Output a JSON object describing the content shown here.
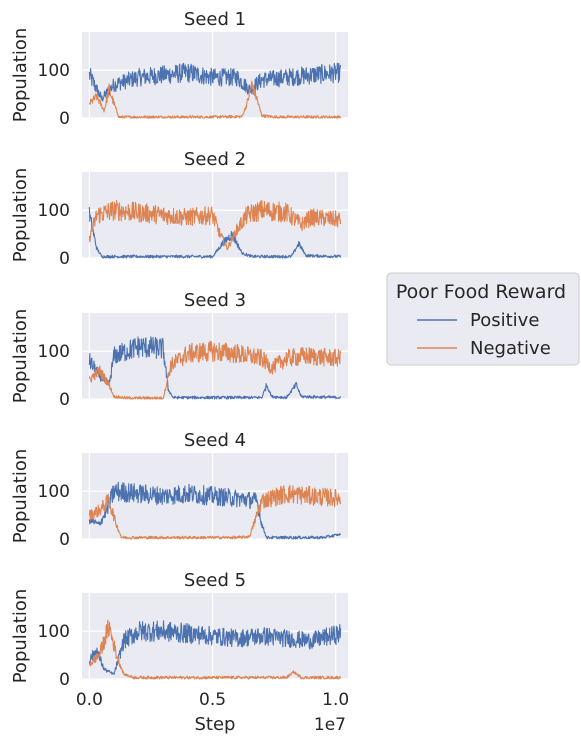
{
  "chart_data": {
    "type": "line",
    "layout": "5 stacked subplots sharing x axis",
    "xlabel": "Step",
    "x_offset_text": "1e7",
    "x_ticks": [
      0.0,
      0.5,
      1.0
    ],
    "x_tick_labels": [
      "0.0",
      "0.5",
      "1.0"
    ],
    "xlim": [
      -0.03,
      1.05
    ],
    "ylabel": "Population",
    "y_ticks": [
      0,
      100
    ],
    "y_tick_labels": [
      "0",
      "100"
    ],
    "ylim": [
      0,
      180
    ],
    "grid": true,
    "background": "#eaeaf2",
    "legend": {
      "title": "Poor Food Reward",
      "placement": "center-right outside",
      "entries": [
        {
          "name": "Positive",
          "color": "#4c72b0"
        },
        {
          "name": "Negative",
          "color": "#dd8452"
        }
      ]
    },
    "x_domain": [
      0.0,
      1.02
    ],
    "panels": [
      {
        "title": "Seed 1",
        "series": [
          {
            "name": "Positive",
            "color": "#4c72b0",
            "segments": [
              [
                0.0,
                90
              ],
              [
                0.05,
                40
              ],
              [
                0.1,
                70
              ],
              [
                0.2,
                85
              ],
              [
                0.3,
                90
              ],
              [
                0.4,
                95
              ],
              [
                0.5,
                85
              ],
              [
                0.6,
                85
              ],
              [
                0.65,
                60
              ],
              [
                0.7,
                80
              ],
              [
                0.8,
                85
              ],
              [
                0.9,
                90
              ],
              [
                1.02,
                95
              ]
            ]
          },
          {
            "name": "Negative",
            "color": "#dd8452",
            "segments": [
              [
                0.0,
                30
              ],
              [
                0.03,
                45
              ],
              [
                0.06,
                15
              ],
              [
                0.08,
                60
              ],
              [
                0.1,
                30
              ],
              [
                0.12,
                2
              ],
              [
                0.2,
                2
              ],
              [
                0.5,
                2
              ],
              [
                0.62,
                3
              ],
              [
                0.64,
                30
              ],
              [
                0.66,
                70
              ],
              [
                0.68,
                40
              ],
              [
                0.7,
                5
              ],
              [
                0.75,
                2
              ],
              [
                1.02,
                2
              ]
            ]
          }
        ]
      },
      {
        "title": "Seed 2",
        "series": [
          {
            "name": "Positive",
            "color": "#4c72b0",
            "segments": [
              [
                0.0,
                90
              ],
              [
                0.03,
                20
              ],
              [
                0.05,
                3
              ],
              [
                0.5,
                3
              ],
              [
                0.54,
                30
              ],
              [
                0.58,
                50
              ],
              [
                0.62,
                10
              ],
              [
                0.66,
                3
              ],
              [
                0.82,
                3
              ],
              [
                0.85,
                30
              ],
              [
                0.88,
                5
              ],
              [
                1.02,
                3
              ]
            ]
          },
          {
            "name": "Negative",
            "color": "#dd8452",
            "segments": [
              [
                0.0,
                40
              ],
              [
                0.03,
                90
              ],
              [
                0.1,
                100
              ],
              [
                0.2,
                95
              ],
              [
                0.3,
                90
              ],
              [
                0.4,
                85
              ],
              [
                0.5,
                90
              ],
              [
                0.53,
                50
              ],
              [
                0.56,
                20
              ],
              [
                0.6,
                60
              ],
              [
                0.64,
                90
              ],
              [
                0.7,
                100
              ],
              [
                0.8,
                95
              ],
              [
                0.86,
                70
              ],
              [
                0.9,
                85
              ],
              [
                1.02,
                80
              ]
            ]
          }
        ]
      },
      {
        "title": "Seed 3",
        "series": [
          {
            "name": "Positive",
            "color": "#4c72b0",
            "segments": [
              [
                0.0,
                80
              ],
              [
                0.04,
                50
              ],
              [
                0.08,
                30
              ],
              [
                0.1,
                90
              ],
              [
                0.2,
                110
              ],
              [
                0.3,
                105
              ],
              [
                0.32,
                20
              ],
              [
                0.34,
                3
              ],
              [
                0.7,
                3
              ],
              [
                0.72,
                30
              ],
              [
                0.74,
                5
              ],
              [
                0.8,
                3
              ],
              [
                0.84,
                30
              ],
              [
                0.86,
                5
              ],
              [
                1.02,
                3
              ]
            ]
          },
          {
            "name": "Negative",
            "color": "#dd8452",
            "segments": [
              [
                0.0,
                40
              ],
              [
                0.04,
                60
              ],
              [
                0.08,
                30
              ],
              [
                0.1,
                5
              ],
              [
                0.15,
                2
              ],
              [
                0.3,
                2
              ],
              [
                0.33,
                70
              ],
              [
                0.4,
                95
              ],
              [
                0.5,
                100
              ],
              [
                0.6,
                95
              ],
              [
                0.7,
                85
              ],
              [
                0.74,
                65
              ],
              [
                0.8,
                85
              ],
              [
                0.88,
                90
              ],
              [
                1.02,
                85
              ]
            ]
          }
        ]
      },
      {
        "title": "Seed 4",
        "series": [
          {
            "name": "Positive",
            "color": "#4c72b0",
            "segments": [
              [
                0.0,
                40
              ],
              [
                0.04,
                30
              ],
              [
                0.07,
                60
              ],
              [
                0.1,
                100
              ],
              [
                0.2,
                95
              ],
              [
                0.3,
                90
              ],
              [
                0.4,
                95
              ],
              [
                0.5,
                90
              ],
              [
                0.6,
                85
              ],
              [
                0.68,
                80
              ],
              [
                0.7,
                30
              ],
              [
                0.72,
                3
              ],
              [
                0.95,
                3
              ],
              [
                1.02,
                10
              ]
            ]
          },
          {
            "name": "Negative",
            "color": "#dd8452",
            "segments": [
              [
                0.0,
                50
              ],
              [
                0.04,
                60
              ],
              [
                0.08,
                80
              ],
              [
                0.11,
                30
              ],
              [
                0.13,
                3
              ],
              [
                0.3,
                3
              ],
              [
                0.6,
                3
              ],
              [
                0.65,
                5
              ],
              [
                0.7,
                80
              ],
              [
                0.8,
                95
              ],
              [
                0.9,
                90
              ],
              [
                1.02,
                85
              ]
            ]
          }
        ]
      },
      {
        "title": "Seed 5",
        "series": [
          {
            "name": "Positive",
            "color": "#4c72b0",
            "segments": [
              [
                0.0,
                40
              ],
              [
                0.03,
                60
              ],
              [
                0.06,
                20
              ],
              [
                0.1,
                10
              ],
              [
                0.14,
                80
              ],
              [
                0.2,
                100
              ],
              [
                0.3,
                100
              ],
              [
                0.4,
                95
              ],
              [
                0.5,
                90
              ],
              [
                0.6,
                85
              ],
              [
                0.7,
                90
              ],
              [
                0.8,
                85
              ],
              [
                0.9,
                80
              ],
              [
                1.02,
                95
              ]
            ]
          },
          {
            "name": "Negative",
            "color": "#dd8452",
            "segments": [
              [
                0.0,
                30
              ],
              [
                0.04,
                50
              ],
              [
                0.08,
                110
              ],
              [
                0.11,
                50
              ],
              [
                0.14,
                10
              ],
              [
                0.18,
                3
              ],
              [
                0.3,
                3
              ],
              [
                0.6,
                3
              ],
              [
                0.8,
                3
              ],
              [
                0.83,
                15
              ],
              [
                0.86,
                3
              ],
              [
                1.02,
                3
              ]
            ]
          }
        ]
      }
    ]
  }
}
